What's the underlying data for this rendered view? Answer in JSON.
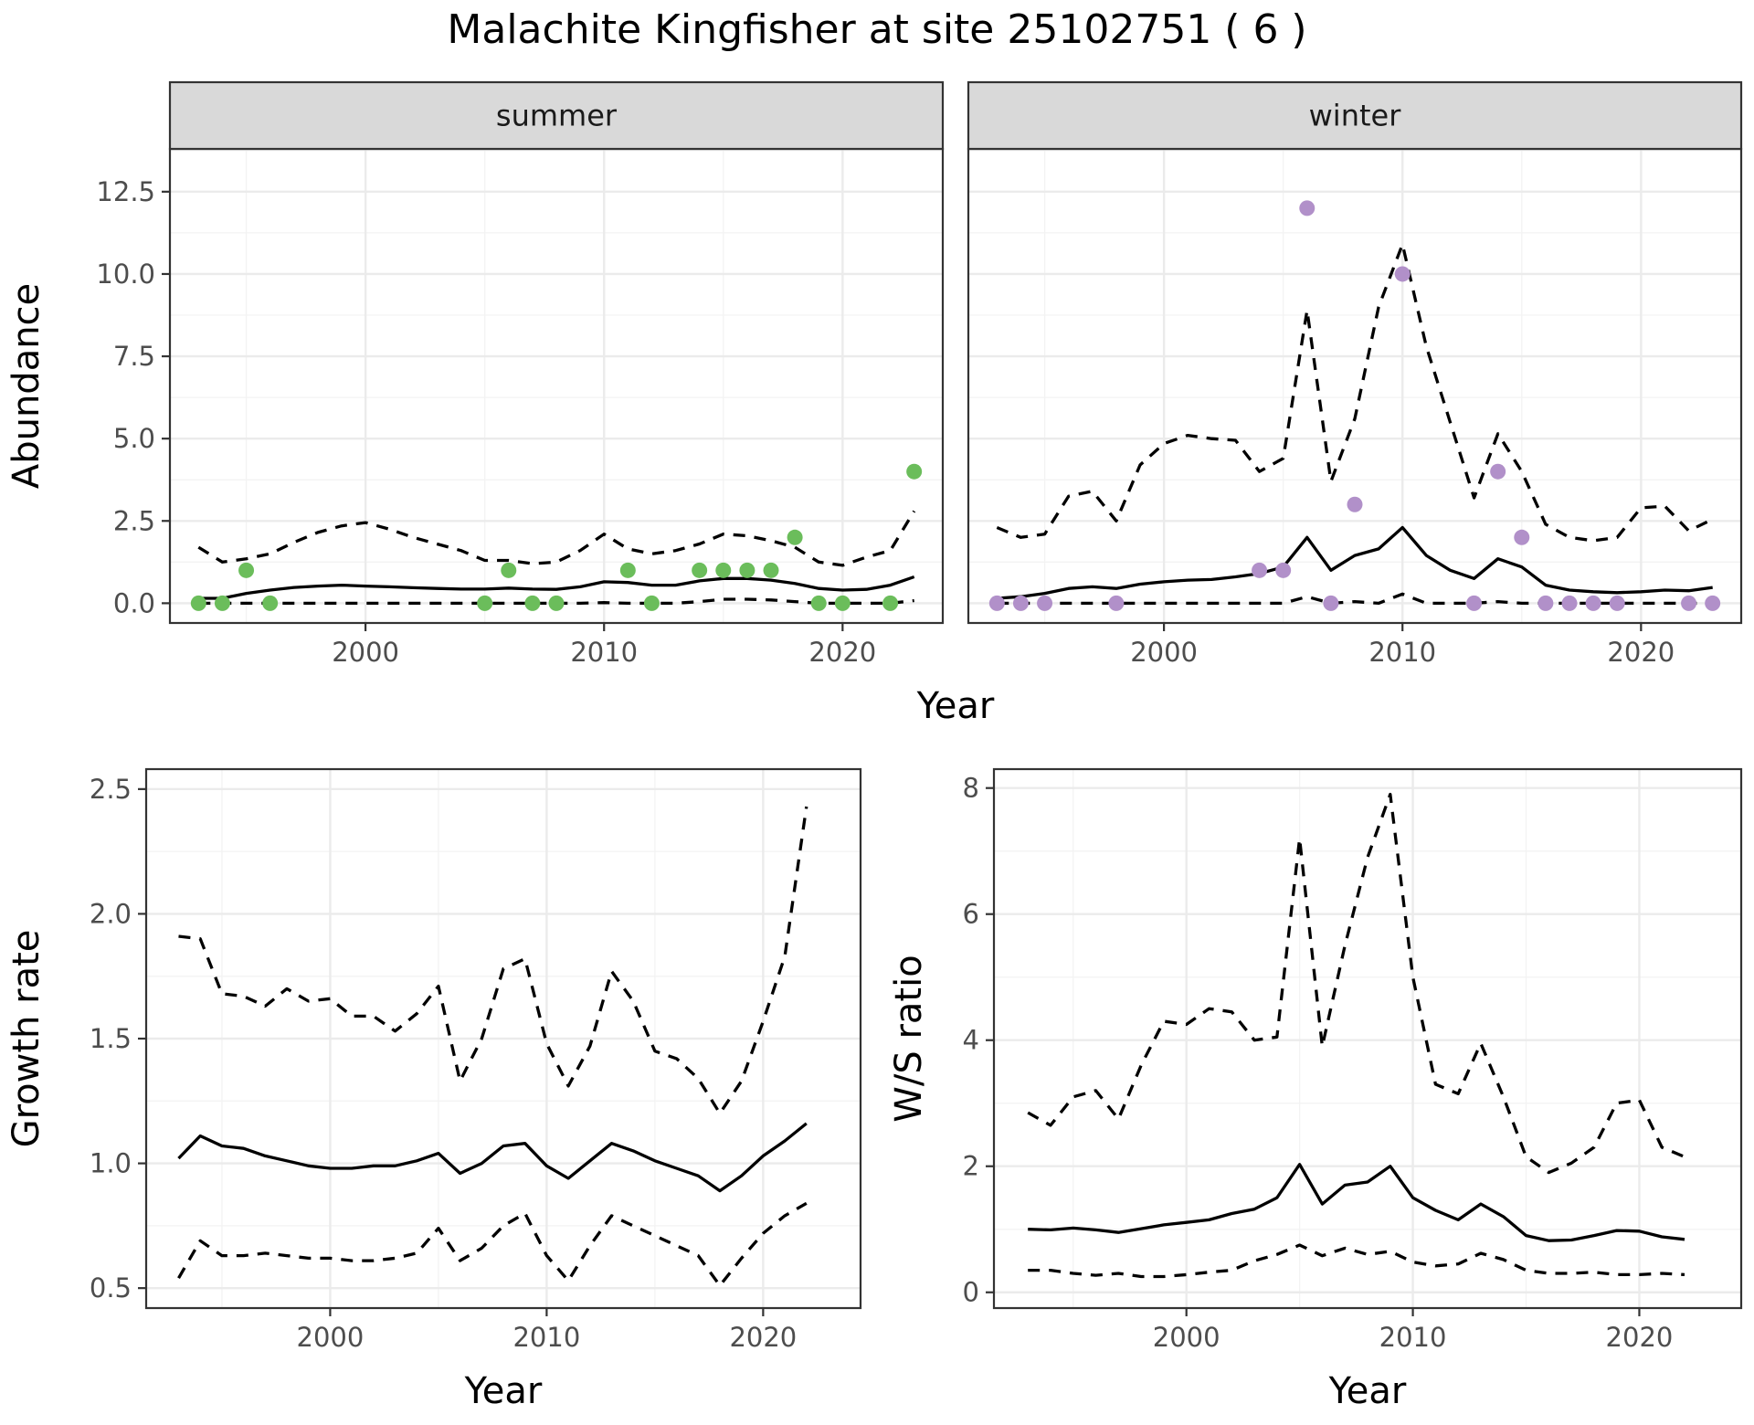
{
  "title": "Malachite Kingfisher at site 25102751 ( 6 )",
  "colors": {
    "summer_points": "#6bbd5b",
    "winter_points": "#b190c9",
    "lines": "#000000"
  },
  "chart_data": [
    {
      "type": "line",
      "facet": "summer",
      "xlabel": "Year",
      "ylabel": "Abundance",
      "xlim": [
        1991.8,
        2024.2
      ],
      "ylim": [
        -0.6,
        13.8
      ],
      "xticks": [
        "2000",
        "2010",
        "2020"
      ],
      "yticks": [
        "0.0",
        "2.5",
        "5.0",
        "7.5",
        "10.0",
        "12.5"
      ],
      "grid": true,
      "series": [
        {
          "role": "upper",
          "x": [
            1993,
            1994,
            1995,
            1996,
            1997,
            1998,
            1999,
            2000,
            2001,
            2002,
            2003,
            2004,
            2005,
            2006,
            2007,
            2008,
            2009,
            2010,
            2011,
            2012,
            2013,
            2014,
            2015,
            2016,
            2017,
            2018,
            2019,
            2020,
            2021,
            2022,
            2023
          ],
          "values": [
            1.7,
            1.25,
            1.35,
            1.5,
            1.85,
            2.15,
            2.35,
            2.45,
            2.25,
            2.0,
            1.8,
            1.6,
            1.3,
            1.3,
            1.2,
            1.25,
            1.6,
            2.1,
            1.65,
            1.5,
            1.6,
            1.8,
            2.1,
            2.05,
            1.9,
            1.7,
            1.25,
            1.15,
            1.4,
            1.6,
            2.8
          ]
        },
        {
          "role": "mean",
          "x": [
            1993,
            1994,
            1995,
            1996,
            1997,
            1998,
            1999,
            2000,
            2001,
            2002,
            2003,
            2004,
            2005,
            2006,
            2007,
            2008,
            2009,
            2010,
            2011,
            2012,
            2013,
            2014,
            2015,
            2016,
            2017,
            2018,
            2019,
            2020,
            2021,
            2022,
            2023
          ],
          "values": [
            0.15,
            0.15,
            0.3,
            0.4,
            0.48,
            0.52,
            0.55,
            0.52,
            0.5,
            0.47,
            0.45,
            0.43,
            0.43,
            0.46,
            0.43,
            0.42,
            0.5,
            0.65,
            0.63,
            0.55,
            0.55,
            0.68,
            0.75,
            0.75,
            0.7,
            0.6,
            0.45,
            0.4,
            0.42,
            0.55,
            0.8
          ]
        },
        {
          "role": "lower",
          "x": [
            1993,
            1994,
            1995,
            1996,
            1997,
            1998,
            1999,
            2000,
            2001,
            2002,
            2003,
            2004,
            2005,
            2006,
            2007,
            2008,
            2009,
            2010,
            2011,
            2012,
            2013,
            2014,
            2015,
            2016,
            2017,
            2018,
            2019,
            2020,
            2021,
            2022,
            2023
          ],
          "values": [
            0,
            0,
            0,
            0,
            0,
            0,
            0,
            0,
            0,
            0,
            0,
            0,
            0,
            0,
            0,
            0,
            0,
            0.02,
            0,
            0,
            0,
            0.05,
            0.12,
            0.12,
            0.1,
            0.05,
            0,
            0,
            0,
            0,
            0.08
          ]
        },
        {
          "role": "observed",
          "x": [
            1993,
            1994,
            1995,
            1996,
            2005,
            2006,
            2007,
            2008,
            2011,
            2012,
            2014,
            2015,
            2016,
            2017,
            2018,
            2019,
            2020,
            2022,
            2023
          ],
          "values": [
            0,
            0,
            1,
            0,
            0,
            1,
            0,
            0,
            1,
            0,
            1,
            1,
            1,
            1,
            2,
            0,
            0,
            0,
            4
          ]
        }
      ]
    },
    {
      "type": "line",
      "facet": "winter",
      "xlabel": "Year",
      "ylabel": "Abundance",
      "xlim": [
        1991.8,
        2024.2
      ],
      "ylim": [
        -0.6,
        13.8
      ],
      "xticks": [
        "2000",
        "2010",
        "2020"
      ],
      "yticks": [
        "0.0",
        "2.5",
        "5.0",
        "7.5",
        "10.0",
        "12.5"
      ],
      "grid": true,
      "series": [
        {
          "role": "upper",
          "x": [
            1993,
            1994,
            1995,
            1996,
            1997,
            1998,
            1999,
            2000,
            2001,
            2002,
            2003,
            2004,
            2005,
            2006,
            2007,
            2008,
            2009,
            2010,
            2011,
            2012,
            2013,
            2014,
            2015,
            2016,
            2017,
            2018,
            2019,
            2020,
            2021,
            2022,
            2023
          ],
          "values": [
            2.3,
            2.0,
            2.1,
            3.25,
            3.4,
            2.5,
            4.2,
            4.85,
            5.1,
            5.0,
            4.95,
            4.0,
            4.4,
            8.9,
            3.7,
            5.6,
            9.0,
            10.9,
            7.8,
            5.5,
            3.2,
            5.15,
            4.0,
            2.4,
            2.0,
            1.9,
            2.0,
            2.9,
            2.95,
            2.2,
            2.55
          ]
        },
        {
          "role": "mean",
          "x": [
            1993,
            1994,
            1995,
            1996,
            1997,
            1998,
            1999,
            2000,
            2001,
            2002,
            2003,
            2004,
            2005,
            2006,
            2007,
            2008,
            2009,
            2010,
            2011,
            2012,
            2013,
            2014,
            2015,
            2016,
            2017,
            2018,
            2019,
            2020,
            2021,
            2022,
            2023
          ],
          "values": [
            0.15,
            0.2,
            0.3,
            0.45,
            0.5,
            0.45,
            0.58,
            0.65,
            0.7,
            0.72,
            0.8,
            0.9,
            1.1,
            2.0,
            1.0,
            1.45,
            1.65,
            2.3,
            1.45,
            1.0,
            0.75,
            1.35,
            1.1,
            0.55,
            0.4,
            0.35,
            0.32,
            0.35,
            0.4,
            0.38,
            0.48
          ]
        },
        {
          "role": "lower",
          "x": [
            1993,
            1994,
            1995,
            1996,
            1997,
            1998,
            1999,
            2000,
            2001,
            2002,
            2003,
            2004,
            2005,
            2006,
            2007,
            2008,
            2009,
            2010,
            2011,
            2012,
            2013,
            2014,
            2015,
            2016,
            2017,
            2018,
            2019,
            2020,
            2021,
            2022,
            2023
          ],
          "values": [
            0,
            0,
            0,
            0,
            0,
            0,
            0,
            0,
            0,
            0,
            0,
            0,
            0,
            0.2,
            0,
            0.05,
            0,
            0.28,
            0,
            0,
            0,
            0.05,
            0,
            0,
            0,
            0,
            0,
            0,
            0,
            0,
            0
          ]
        },
        {
          "role": "observed",
          "x": [
            1993,
            1994,
            1995,
            1998,
            2004,
            2005,
            2006,
            2007,
            2008,
            2010,
            2013,
            2014,
            2015,
            2016,
            2017,
            2018,
            2019,
            2022,
            2023
          ],
          "values": [
            0,
            0,
            0,
            0,
            1,
            1,
            12,
            0,
            3,
            10,
            0,
            4,
            2,
            0,
            0,
            0,
            0,
            0,
            0
          ]
        }
      ]
    },
    {
      "type": "line",
      "xlabel": "Year",
      "ylabel": "Growth rate",
      "xlim": [
        1991.5,
        2024.5
      ],
      "ylim": [
        0.42,
        2.58
      ],
      "xticks": [
        "2000",
        "2010",
        "2020"
      ],
      "yticks": [
        "0.5",
        "1.0",
        "1.5",
        "2.0",
        "2.5"
      ],
      "grid": true,
      "series": [
        {
          "role": "upper",
          "x": [
            1993,
            1994,
            1995,
            1996,
            1997,
            1998,
            1999,
            2000,
            2001,
            2002,
            2003,
            2004,
            2005,
            2006,
            2007,
            2008,
            2009,
            2010,
            2011,
            2012,
            2013,
            2014,
            2015,
            2016,
            2017,
            2018,
            2019,
            2020,
            2021,
            2022
          ],
          "values": [
            1.91,
            1.9,
            1.68,
            1.67,
            1.63,
            1.7,
            1.65,
            1.66,
            1.59,
            1.59,
            1.53,
            1.6,
            1.71,
            1.33,
            1.5,
            1.78,
            1.82,
            1.48,
            1.31,
            1.47,
            1.77,
            1.65,
            1.45,
            1.42,
            1.34,
            1.2,
            1.33,
            1.57,
            1.83,
            2.43
          ]
        },
        {
          "role": "mean",
          "x": [
            1993,
            1994,
            1995,
            1996,
            1997,
            1998,
            1999,
            2000,
            2001,
            2002,
            2003,
            2004,
            2005,
            2006,
            2007,
            2008,
            2009,
            2010,
            2011,
            2012,
            2013,
            2014,
            2015,
            2016,
            2017,
            2018,
            2019,
            2020,
            2021,
            2022
          ],
          "values": [
            1.02,
            1.11,
            1.07,
            1.06,
            1.03,
            1.01,
            0.99,
            0.98,
            0.98,
            0.99,
            0.99,
            1.01,
            1.04,
            0.96,
            1.0,
            1.07,
            1.08,
            0.99,
            0.94,
            1.01,
            1.08,
            1.05,
            1.01,
            0.98,
            0.95,
            0.89,
            0.95,
            1.03,
            1.09,
            1.16
          ]
        },
        {
          "role": "lower",
          "x": [
            1993,
            1994,
            1995,
            1996,
            1997,
            1998,
            1999,
            2000,
            2001,
            2002,
            2003,
            2004,
            2005,
            2006,
            2007,
            2008,
            2009,
            2010,
            2011,
            2012,
            2013,
            2014,
            2015,
            2016,
            2017,
            2018,
            2019,
            2020,
            2021,
            2022
          ],
          "values": [
            0.54,
            0.69,
            0.63,
            0.63,
            0.64,
            0.63,
            0.62,
            0.62,
            0.61,
            0.61,
            0.62,
            0.64,
            0.74,
            0.61,
            0.66,
            0.75,
            0.8,
            0.63,
            0.53,
            0.67,
            0.79,
            0.75,
            0.71,
            0.67,
            0.63,
            0.51,
            0.62,
            0.72,
            0.79,
            0.84
          ]
        }
      ]
    },
    {
      "type": "line",
      "xlabel": "Year",
      "ylabel": "W/S ratio",
      "xlim": [
        1991.5,
        2024.5
      ],
      "ylim": [
        -0.25,
        8.3
      ],
      "xticks": [
        "2000",
        "2010",
        "2020"
      ],
      "yticks": [
        "0",
        "2",
        "4",
        "6",
        "8"
      ],
      "grid": true,
      "series": [
        {
          "role": "upper",
          "x": [
            1993,
            1994,
            1995,
            1996,
            1997,
            1998,
            1999,
            2000,
            2001,
            2002,
            2003,
            2004,
            2005,
            2006,
            2007,
            2008,
            2009,
            2010,
            2011,
            2012,
            2013,
            2014,
            2015,
            2016,
            2017,
            2018,
            2019,
            2020,
            2021,
            2022
          ],
          "values": [
            2.85,
            2.65,
            3.1,
            3.2,
            2.75,
            3.6,
            4.3,
            4.25,
            4.5,
            4.45,
            4.0,
            4.05,
            7.2,
            3.9,
            5.5,
            6.9,
            7.9,
            5.0,
            3.3,
            3.15,
            3.95,
            3.1,
            2.15,
            1.9,
            2.05,
            2.3,
            3.0,
            3.05,
            2.3,
            2.15
          ]
        },
        {
          "role": "mean",
          "x": [
            1993,
            1994,
            1995,
            1996,
            1997,
            1998,
            1999,
            2000,
            2001,
            2002,
            2003,
            2004,
            2005,
            2006,
            2007,
            2008,
            2009,
            2010,
            2011,
            2012,
            2013,
            2014,
            2015,
            2016,
            2017,
            2018,
            2019,
            2020,
            2021,
            2022
          ],
          "values": [
            1.0,
            0.99,
            1.02,
            0.99,
            0.95,
            1.01,
            1.07,
            1.11,
            1.15,
            1.25,
            1.32,
            1.5,
            2.03,
            1.4,
            1.7,
            1.75,
            2.0,
            1.5,
            1.3,
            1.15,
            1.4,
            1.2,
            0.9,
            0.82,
            0.83,
            0.9,
            0.98,
            0.97,
            0.88,
            0.84
          ]
        },
        {
          "role": "lower",
          "x": [
            1993,
            1994,
            1995,
            1996,
            1997,
            1998,
            1999,
            2000,
            2001,
            2002,
            2003,
            2004,
            2005,
            2006,
            2007,
            2008,
            2009,
            2010,
            2011,
            2012,
            2013,
            2014,
            2015,
            2016,
            2017,
            2018,
            2019,
            2020,
            2021,
            2022
          ],
          "values": [
            0.35,
            0.35,
            0.3,
            0.27,
            0.3,
            0.25,
            0.25,
            0.28,
            0.32,
            0.35,
            0.5,
            0.6,
            0.75,
            0.58,
            0.7,
            0.6,
            0.65,
            0.48,
            0.42,
            0.45,
            0.62,
            0.52,
            0.35,
            0.3,
            0.3,
            0.32,
            0.28,
            0.28,
            0.3,
            0.28
          ]
        }
      ]
    }
  ]
}
